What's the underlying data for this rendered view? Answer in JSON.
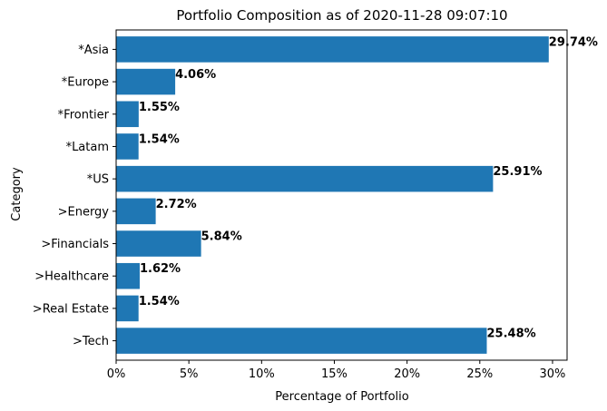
{
  "chart_data": {
    "type": "bar",
    "orientation": "horizontal",
    "title": "Portfolio Composition as of 2020-11-28 09:07:10",
    "xlabel": "Percentage of Portfolio",
    "ylabel": "Category",
    "categories": [
      "*Asia",
      "*Europe",
      "*Frontier",
      "*Latam",
      "*US",
      ">Energy",
      ">Financials",
      ">Healthcare",
      ">Real Estate",
      ">Tech"
    ],
    "values": [
      29.74,
      4.06,
      1.55,
      1.54,
      25.91,
      2.72,
      5.84,
      1.62,
      1.54,
      25.48
    ],
    "data_labels": [
      "29.74%",
      "4.06%",
      "1.55%",
      "1.54%",
      "25.91%",
      "2.72%",
      "5.84%",
      "1.62%",
      "1.54%",
      "25.48%"
    ],
    "xlim": [
      0,
      31
    ],
    "xticks": [
      0,
      5,
      10,
      15,
      20,
      25,
      30
    ],
    "xtick_labels": [
      "0%",
      "5%",
      "10%",
      "15%",
      "20%",
      "25%",
      "30%"
    ],
    "bar_color": "#1f77b4",
    "grid": false,
    "legend": "none"
  }
}
